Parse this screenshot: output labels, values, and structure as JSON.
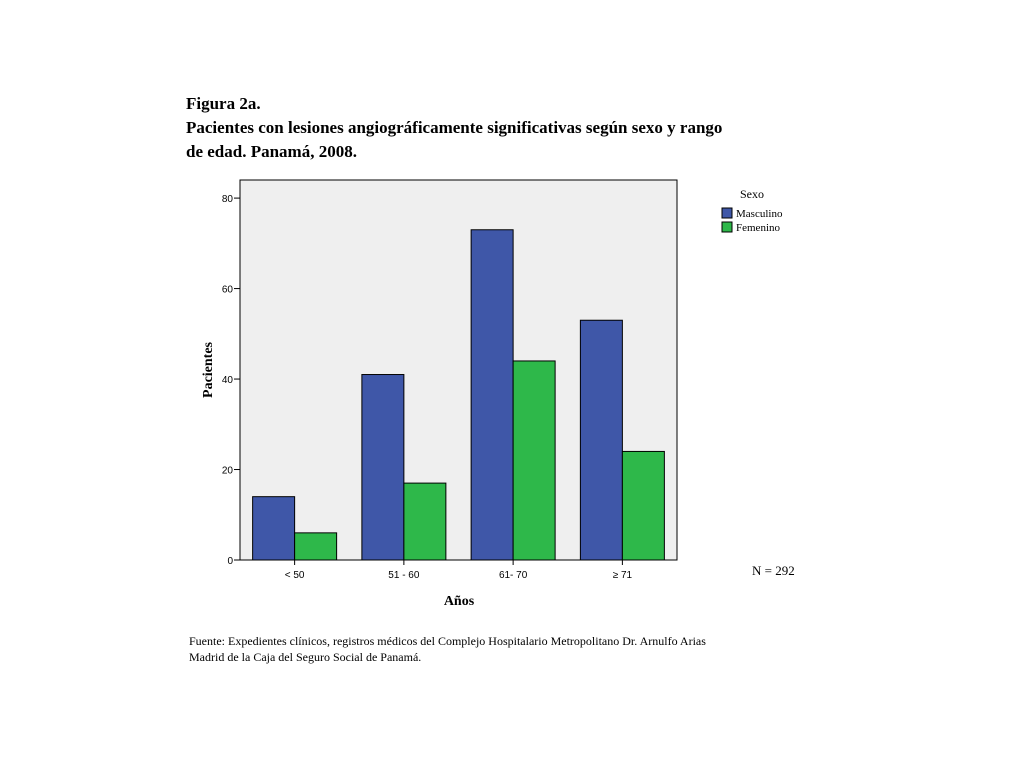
{
  "caption": {
    "figure_label": "Figura 2a.",
    "title_line1": "Pacientes con lesiones angiográficamente significativas según sexo y rango",
    "title_line2": "de edad. Panamá, 2008."
  },
  "chart_data": {
    "type": "bar",
    "categories": [
      "< 50",
      "51 - 60",
      "61- 70",
      "≥ 71"
    ],
    "series": [
      {
        "name": "Masculino",
        "values": [
          14,
          41,
          73,
          53
        ],
        "color": "#3f57a8"
      },
      {
        "name": "Femenino",
        "values": [
          6,
          17,
          44,
          24
        ],
        "color": "#2eb84a"
      }
    ],
    "xlabel": "Años",
    "ylabel": "Pacientes",
    "ylim": [
      0,
      84
    ],
    "yticks": [
      0,
      20,
      40,
      60,
      80
    ],
    "legend_title": "Sexo",
    "legend_position": "top-right",
    "grid": false,
    "plot_background": "#efefef",
    "annotation": "N = 292"
  },
  "source": {
    "line1": "Fuente: Expedientes clínicos, registros médicos del Complejo Hospitalario Metropolitano Dr. Arnulfo Arias",
    "line2": "Madrid de la Caja del Seguro Social de Panamá."
  }
}
